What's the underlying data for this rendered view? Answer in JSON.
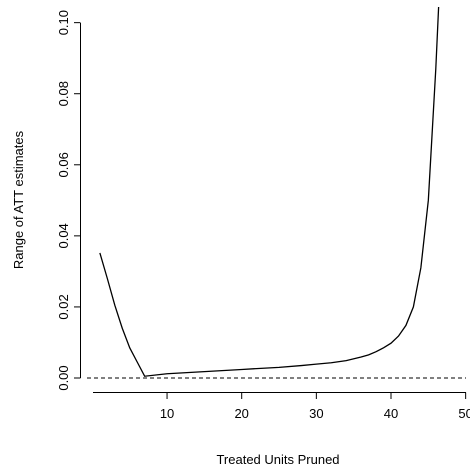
{
  "chart_data": {
    "type": "line",
    "xlabel": "Treated Units Pruned",
    "ylabel": "Range of ATT estimates",
    "xlim": [
      0,
      50
    ],
    "ylim": [
      0,
      0.1
    ],
    "x_ticks": [
      10,
      20,
      30,
      40,
      50
    ],
    "x_tick_labels": [
      "10",
      "20",
      "30",
      "40",
      "50"
    ],
    "y_ticks": [
      0,
      0.02,
      0.04,
      0.06,
      0.08,
      0.1
    ],
    "y_tick_labels": [
      "0.00",
      "0.02",
      "0.04",
      "0.06",
      "0.08",
      "0.10"
    ],
    "reference_line": {
      "y": 0,
      "style": "dashed"
    },
    "grid": false,
    "series": [
      {
        "x": [
          1,
          2,
          3,
          4,
          5,
          6,
          7,
          10,
          15,
          20,
          25,
          28,
          30,
          32,
          34,
          36,
          37,
          38,
          39,
          40,
          41,
          42,
          43,
          44,
          45,
          46,
          46.5
        ],
        "y": [
          0.0352,
          0.028,
          0.0205,
          0.014,
          0.0085,
          0.0045,
          0.0005,
          0.0012,
          0.0018,
          0.0024,
          0.003,
          0.0035,
          0.0039,
          0.0043,
          0.0049,
          0.0059,
          0.0065,
          0.0074,
          0.0085,
          0.0098,
          0.0118,
          0.0148,
          0.02,
          0.031,
          0.05,
          0.087,
          0.11
        ]
      }
    ]
  }
}
